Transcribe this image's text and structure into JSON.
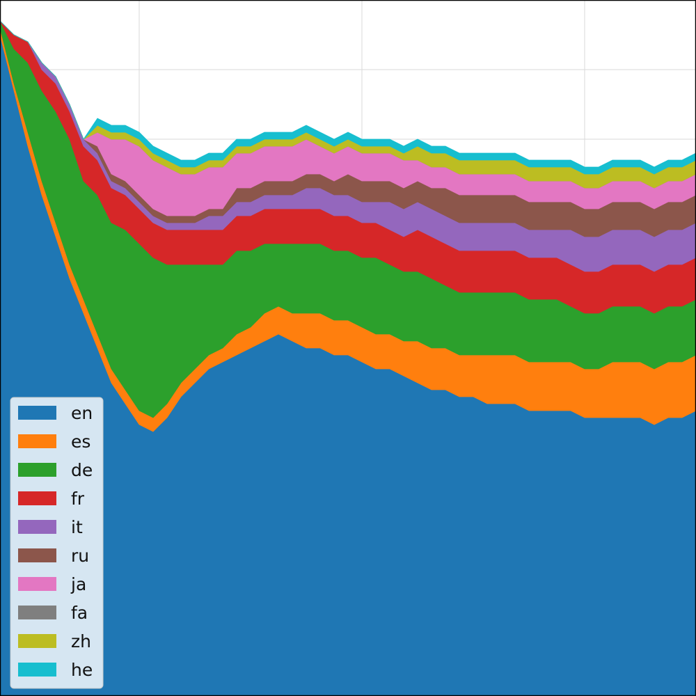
{
  "chart_data": {
    "type": "area",
    "stacked": true,
    "title": "",
    "xlabel": "",
    "ylabel": "",
    "xlim": [
      0,
      100
    ],
    "ylim": [
      0,
      1
    ],
    "grid": true,
    "legend_position": "lower-left",
    "x": [
      0,
      2,
      4,
      6,
      8,
      10,
      12,
      14,
      16,
      18,
      20,
      22,
      24,
      26,
      28,
      30,
      32,
      34,
      36,
      38,
      40,
      42,
      44,
      46,
      48,
      50,
      52,
      54,
      56,
      58,
      60,
      62,
      64,
      66,
      68,
      70,
      72,
      74,
      76,
      78,
      80,
      82,
      84,
      86,
      88,
      90,
      92,
      94,
      96,
      98,
      100
    ],
    "series": [
      {
        "name": "en",
        "color": "#1f77b4",
        "values": [
          0.95,
          0.87,
          0.79,
          0.72,
          0.66,
          0.6,
          0.55,
          0.5,
          0.45,
          0.42,
          0.39,
          0.38,
          0.4,
          0.43,
          0.45,
          0.47,
          0.48,
          0.49,
          0.5,
          0.51,
          0.52,
          0.51,
          0.5,
          0.5,
          0.49,
          0.49,
          0.48,
          0.47,
          0.47,
          0.46,
          0.45,
          0.44,
          0.44,
          0.43,
          0.43,
          0.42,
          0.42,
          0.42,
          0.41,
          0.41,
          0.41,
          0.41,
          0.4,
          0.4,
          0.4,
          0.4,
          0.4,
          0.39,
          0.4,
          0.4,
          0.41
        ]
      },
      {
        "name": "es",
        "color": "#ff7f0e",
        "values": [
          0.01,
          0.01,
          0.02,
          0.02,
          0.02,
          0.02,
          0.02,
          0.02,
          0.02,
          0.02,
          0.02,
          0.02,
          0.02,
          0.02,
          0.02,
          0.02,
          0.02,
          0.03,
          0.03,
          0.04,
          0.04,
          0.04,
          0.05,
          0.05,
          0.05,
          0.05,
          0.05,
          0.05,
          0.05,
          0.05,
          0.06,
          0.06,
          0.06,
          0.06,
          0.06,
          0.07,
          0.07,
          0.07,
          0.07,
          0.07,
          0.07,
          0.07,
          0.07,
          0.07,
          0.08,
          0.08,
          0.08,
          0.08,
          0.08,
          0.08,
          0.08
        ]
      },
      {
        "name": "de",
        "color": "#2ca02c",
        "values": [
          0.01,
          0.05,
          0.1,
          0.13,
          0.16,
          0.18,
          0.17,
          0.2,
          0.21,
          0.23,
          0.24,
          0.23,
          0.2,
          0.17,
          0.15,
          0.13,
          0.12,
          0.12,
          0.11,
          0.1,
          0.09,
          0.1,
          0.1,
          0.1,
          0.1,
          0.1,
          0.1,
          0.11,
          0.1,
          0.1,
          0.1,
          0.1,
          0.09,
          0.09,
          0.09,
          0.09,
          0.09,
          0.09,
          0.09,
          0.09,
          0.09,
          0.08,
          0.08,
          0.08,
          0.08,
          0.08,
          0.08,
          0.08,
          0.08,
          0.08,
          0.08
        ]
      },
      {
        "name": "fr",
        "color": "#d62728",
        "values": [
          0.0,
          0.02,
          0.03,
          0.03,
          0.04,
          0.04,
          0.05,
          0.05,
          0.05,
          0.05,
          0.05,
          0.05,
          0.05,
          0.05,
          0.05,
          0.05,
          0.05,
          0.05,
          0.05,
          0.05,
          0.05,
          0.05,
          0.05,
          0.05,
          0.05,
          0.05,
          0.05,
          0.05,
          0.05,
          0.05,
          0.06,
          0.06,
          0.06,
          0.06,
          0.06,
          0.06,
          0.06,
          0.06,
          0.06,
          0.06,
          0.06,
          0.06,
          0.06,
          0.06,
          0.06,
          0.06,
          0.06,
          0.06,
          0.06,
          0.06,
          0.06
        ]
      },
      {
        "name": "it",
        "color": "#9467bd",
        "values": [
          0.0,
          0.0,
          0.0,
          0.01,
          0.01,
          0.01,
          0.01,
          0.01,
          0.01,
          0.01,
          0.01,
          0.01,
          0.01,
          0.01,
          0.01,
          0.02,
          0.02,
          0.02,
          0.02,
          0.02,
          0.02,
          0.02,
          0.03,
          0.03,
          0.03,
          0.03,
          0.03,
          0.03,
          0.04,
          0.04,
          0.04,
          0.04,
          0.04,
          0.04,
          0.04,
          0.04,
          0.04,
          0.04,
          0.04,
          0.04,
          0.04,
          0.05,
          0.05,
          0.05,
          0.05,
          0.05,
          0.05,
          0.05,
          0.05,
          0.05,
          0.05
        ]
      },
      {
        "name": "ru",
        "color": "#8c564b",
        "values": [
          0.0,
          0.0,
          0.0,
          0.0,
          0.0,
          0.0,
          0.0,
          0.01,
          0.01,
          0.01,
          0.01,
          0.01,
          0.01,
          0.01,
          0.01,
          0.01,
          0.01,
          0.02,
          0.02,
          0.02,
          0.02,
          0.02,
          0.02,
          0.02,
          0.02,
          0.03,
          0.03,
          0.03,
          0.03,
          0.03,
          0.03,
          0.03,
          0.04,
          0.04,
          0.04,
          0.04,
          0.04,
          0.04,
          0.04,
          0.04,
          0.04,
          0.04,
          0.04,
          0.04,
          0.04,
          0.04,
          0.04,
          0.04,
          0.04,
          0.04,
          0.04
        ]
      },
      {
        "name": "ja",
        "color": "#e377c2",
        "values": [
          0.0,
          0.0,
          0.0,
          0.0,
          0.0,
          0.0,
          0.0,
          0.02,
          0.05,
          0.06,
          0.07,
          0.07,
          0.07,
          0.06,
          0.06,
          0.06,
          0.06,
          0.05,
          0.05,
          0.05,
          0.05,
          0.05,
          0.05,
          0.04,
          0.04,
          0.04,
          0.04,
          0.04,
          0.04,
          0.04,
          0.03,
          0.03,
          0.03,
          0.03,
          0.03,
          0.03,
          0.03,
          0.03,
          0.03,
          0.03,
          0.03,
          0.03,
          0.03,
          0.03,
          0.03,
          0.03,
          0.03,
          0.03,
          0.03,
          0.03,
          0.03
        ]
      },
      {
        "name": "fa",
        "color": "#7f7f7f",
        "values": [
          0.0,
          0.0,
          0.0,
          0.0,
          0.0,
          0.0,
          0.0,
          0.0,
          0.0,
          0.0,
          0.0,
          0.0,
          0.0,
          0.0,
          0.0,
          0.0,
          0.0,
          0.0,
          0.0,
          0.0,
          0.0,
          0.0,
          0.0,
          0.0,
          0.0,
          0.0,
          0.0,
          0.0,
          0.0,
          0.0,
          0.0,
          0.0,
          0.0,
          0.0,
          0.0,
          0.0,
          0.0,
          0.0,
          0.0,
          0.0,
          0.0,
          0.0,
          0.0,
          0.0,
          0.0,
          0.0,
          0.0,
          0.0,
          0.0,
          0.0,
          0.0
        ]
      },
      {
        "name": "zh",
        "color": "#bcbd22",
        "values": [
          0.0,
          0.0,
          0.0,
          0.0,
          0.0,
          0.0,
          0.0,
          0.01,
          0.01,
          0.01,
          0.01,
          0.01,
          0.01,
          0.01,
          0.01,
          0.01,
          0.01,
          0.01,
          0.01,
          0.01,
          0.01,
          0.01,
          0.01,
          0.01,
          0.01,
          0.01,
          0.01,
          0.01,
          0.01,
          0.01,
          0.02,
          0.02,
          0.02,
          0.02,
          0.02,
          0.02,
          0.02,
          0.02,
          0.02,
          0.02,
          0.02,
          0.02,
          0.02,
          0.02,
          0.02,
          0.02,
          0.02,
          0.02,
          0.02,
          0.02,
          0.02
        ]
      },
      {
        "name": "he",
        "color": "#17becf",
        "values": [
          0.0,
          0.0,
          0.0,
          0.0,
          0.0,
          0.0,
          0.0,
          0.01,
          0.01,
          0.01,
          0.01,
          0.01,
          0.01,
          0.01,
          0.01,
          0.01,
          0.01,
          0.01,
          0.01,
          0.01,
          0.01,
          0.01,
          0.01,
          0.01,
          0.01,
          0.01,
          0.01,
          0.01,
          0.01,
          0.01,
          0.01,
          0.01,
          0.01,
          0.01,
          0.01,
          0.01,
          0.01,
          0.01,
          0.01,
          0.01,
          0.01,
          0.01,
          0.01,
          0.01,
          0.01,
          0.01,
          0.01,
          0.01,
          0.01,
          0.01,
          0.01
        ]
      }
    ]
  }
}
